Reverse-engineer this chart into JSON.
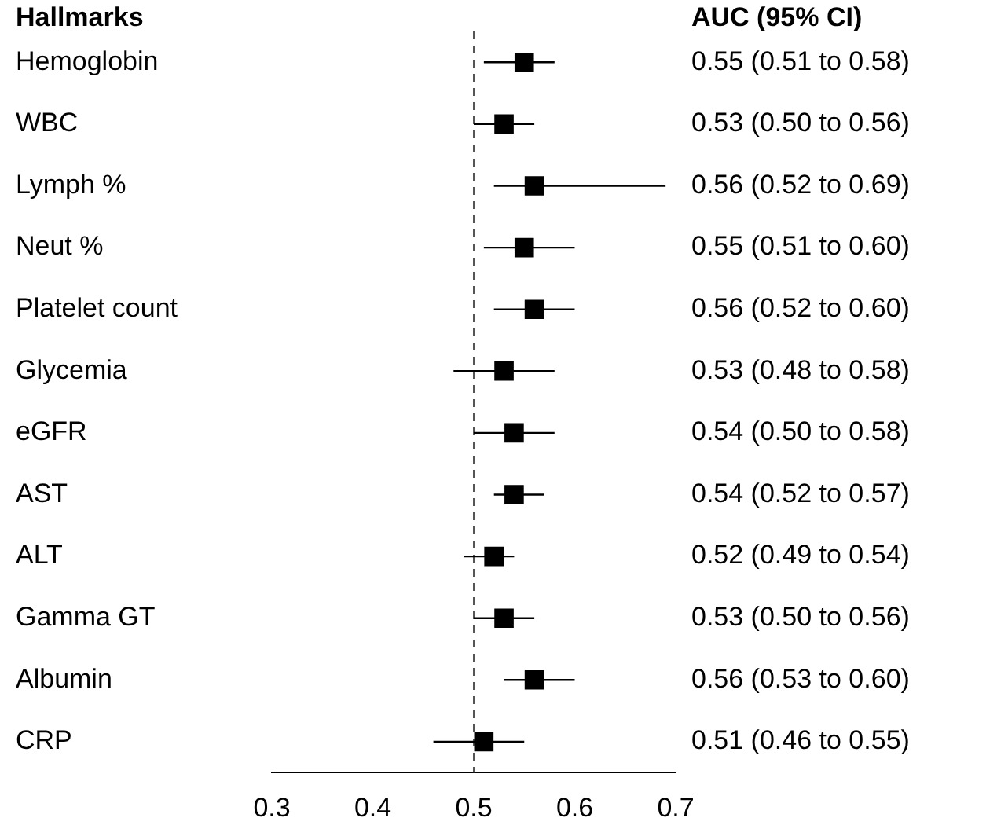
{
  "chart_data": {
    "type": "scatter",
    "orientation": "horizontal",
    "ylabel": "Hallmarks",
    "annotations": [
      "AUC (95% CI)"
    ],
    "categories": [
      "Hemoglobin",
      "WBC",
      "Lymph %",
      "Neut %",
      "Platelet count",
      "Glycemia",
      "eGFR",
      "AST",
      "ALT",
      "Gamma GT",
      "Albumin",
      "CRP"
    ],
    "values": [
      0.55,
      0.53,
      0.56,
      0.55,
      0.56,
      0.53,
      0.54,
      0.54,
      0.52,
      0.53,
      0.56,
      0.51
    ],
    "errors": [
      [
        0.51,
        0.58
      ],
      [
        0.5,
        0.56
      ],
      [
        0.52,
        0.69
      ],
      [
        0.51,
        0.6
      ],
      [
        0.52,
        0.6
      ],
      [
        0.48,
        0.58
      ],
      [
        0.5,
        0.58
      ],
      [
        0.52,
        0.57
      ],
      [
        0.49,
        0.54
      ],
      [
        0.5,
        0.56
      ],
      [
        0.53,
        0.6
      ],
      [
        0.46,
        0.55
      ]
    ],
    "value_labels": [
      "0.55 (0.51 to 0.58)",
      "0.53 (0.50 to 0.56)",
      "0.56 (0.52 to 0.69)",
      "0.55 (0.51 to 0.60)",
      "0.56 (0.52 to 0.60)",
      "0.53 (0.48 to 0.58)",
      "0.54 (0.50 to 0.58)",
      "0.54 (0.52 to 0.57)",
      "0.52 (0.49 to 0.54)",
      "0.53 (0.50 to 0.56)",
      "0.56 (0.53 to 0.60)",
      "0.51 (0.46 to 0.55)"
    ],
    "color": "#000000",
    "marker": "square",
    "xlim": [
      0.3,
      0.7
    ],
    "xticks": [
      0.3,
      0.4,
      0.5,
      0.6,
      0.7
    ],
    "ref_lines": [
      {
        "axis": "x",
        "value": 0.5,
        "color": "#555555",
        "line_style": "dashed"
      }
    ],
    "grid": false,
    "legend": false
  }
}
